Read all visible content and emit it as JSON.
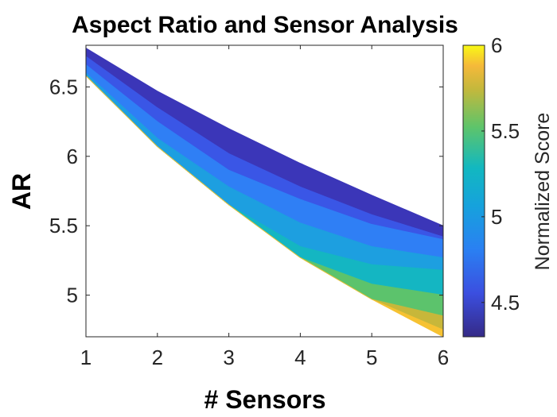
{
  "chart_data": {
    "type": "filled-contour",
    "title": "Aspect Ratio and Sensor Analysis",
    "xlabel": "# Sensors",
    "ylabel": "AR",
    "xlim": [
      1,
      6
    ],
    "ylim": [
      4.7,
      6.8
    ],
    "xticks": [
      "1",
      "2",
      "3",
      "4",
      "5",
      "6"
    ],
    "yticks": [
      "5",
      "5.5",
      "6",
      "6.5"
    ],
    "grid": false,
    "colorbar": {
      "label": "Normalized Score",
      "range": [
        4.3,
        6.0
      ],
      "ticks": [
        "4.5",
        "5",
        "5.5",
        "6"
      ],
      "colormap": "parula"
    },
    "region": {
      "x": [
        1,
        2,
        3,
        4,
        5,
        6
      ],
      "upper": [
        6.78,
        6.47,
        6.2,
        5.95,
        5.72,
        5.5
      ],
      "lower": [
        6.58,
        6.07,
        5.65,
        5.27,
        4.97,
        4.7
      ]
    },
    "bands": [
      {
        "level": 4.4,
        "color": "#3b36b8",
        "upper": [
          6.78,
          6.47,
          6.2,
          5.95,
          5.72,
          5.5
        ],
        "lower": [
          6.72,
          6.35,
          6.02,
          5.78,
          5.58,
          5.42
        ]
      },
      {
        "level": 4.6,
        "color": "#3a56e6",
        "upper": [
          6.72,
          6.35,
          6.02,
          5.78,
          5.58,
          5.42
        ],
        "lower": [
          6.66,
          6.25,
          5.9,
          5.69,
          5.51,
          5.4
        ]
      },
      {
        "level": 4.8,
        "color": "#2f7ff5",
        "upper": [
          6.66,
          6.25,
          5.9,
          5.69,
          5.51,
          5.4
        ],
        "lower": [
          6.6,
          6.13,
          5.78,
          5.52,
          5.35,
          5.27
        ]
      },
      {
        "level": 5.0,
        "color": "#1d9fe0",
        "upper": [
          6.6,
          6.13,
          5.78,
          5.52,
          5.35,
          5.27
        ],
        "lower": [
          6.58,
          6.07,
          5.65,
          5.35,
          5.22,
          5.18
        ]
      },
      {
        "level": 5.2,
        "color": "#14b6c2",
        "upper": [
          6.58,
          6.07,
          5.65,
          5.35,
          5.22,
          5.18
        ],
        "lower": [
          6.58,
          6.07,
          5.65,
          5.27,
          5.08,
          5.0
        ]
      },
      {
        "level": 5.4,
        "color": "#5cc36c",
        "upper": [
          6.58,
          6.07,
          5.65,
          5.27,
          5.08,
          5.0
        ],
        "lower": [
          6.58,
          6.07,
          5.65,
          5.27,
          4.97,
          4.85
        ]
      },
      {
        "level": 5.6,
        "color": "#c7b73a",
        "upper": [
          6.58,
          6.07,
          5.65,
          5.27,
          4.97,
          4.85
        ],
        "lower": [
          6.58,
          6.07,
          5.65,
          5.27,
          4.97,
          4.75
        ]
      },
      {
        "level": 5.8,
        "color": "#f6c232",
        "upper": [
          6.58,
          6.07,
          5.65,
          5.27,
          4.97,
          4.75
        ],
        "lower": [
          6.58,
          6.07,
          5.65,
          5.27,
          4.97,
          4.7
        ]
      }
    ]
  }
}
